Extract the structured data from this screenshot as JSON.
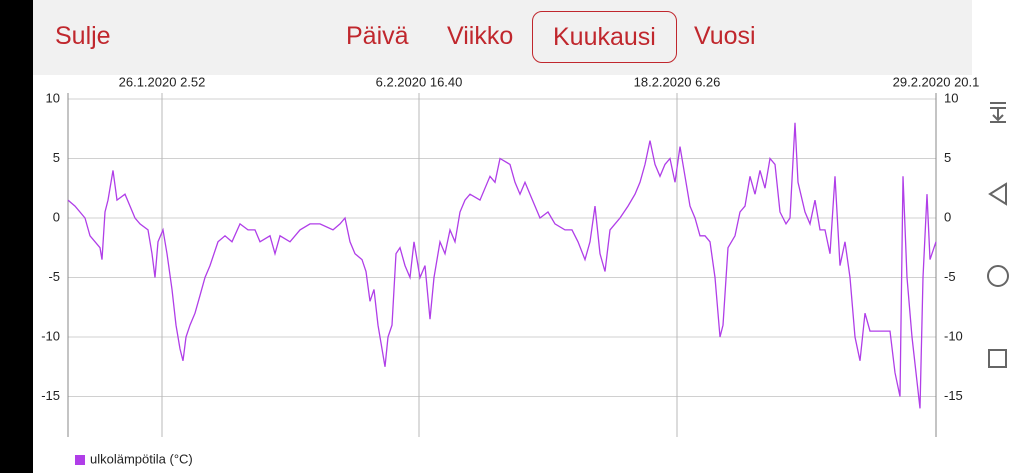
{
  "header": {
    "close": "Sulje",
    "tabs": [
      "Päivä",
      "Viikko",
      "Kuukausi",
      "Vuosi"
    ],
    "selected_tab": 2
  },
  "chart_data": {
    "type": "line",
    "x": [
      0,
      7,
      17,
      22,
      32,
      34,
      37,
      40,
      45,
      49,
      57,
      67,
      72,
      80,
      84,
      87,
      90,
      95,
      99,
      104,
      108,
      112,
      115,
      118,
      122,
      127,
      132,
      137,
      142,
      150,
      157,
      164,
      172,
      180,
      187,
      192,
      202,
      207,
      212,
      222,
      232,
      242,
      252,
      265,
      272,
      277,
      282,
      287,
      294,
      298,
      302,
      306,
      310,
      314,
      317,
      320,
      324,
      328,
      332,
      337,
      342,
      346,
      352,
      357,
      362,
      366,
      372,
      377,
      382,
      387,
      392,
      397,
      402,
      412,
      422,
      427,
      432,
      442,
      447,
      452,
      457,
      462,
      467,
      472,
      480,
      487,
      497,
      504,
      510,
      517,
      522,
      527,
      532,
      537,
      542,
      547,
      552,
      560,
      567,
      572,
      577,
      582,
      587,
      592,
      597,
      602,
      607,
      612,
      617,
      622,
      627,
      632,
      637,
      642,
      647,
      652,
      655,
      660,
      667,
      672,
      677,
      682,
      687,
      692,
      697,
      702,
      707,
      712,
      718,
      722,
      727,
      730,
      737,
      742,
      747,
      752,
      757,
      762,
      767,
      772,
      777,
      782,
      787,
      792,
      797,
      802,
      812,
      822,
      827,
      832,
      835,
      839,
      844,
      848,
      852,
      855,
      859,
      862,
      868
    ],
    "series": [
      {
        "name": "ulkolämpötila (°C)",
        "color": "#b03ee8",
        "values": [
          1.5,
          1,
          0,
          -1.5,
          -2.5,
          -3.5,
          0.5,
          1.5,
          4,
          1.5,
          2,
          0,
          -0.5,
          -1,
          -3,
          -5,
          -2,
          -1,
          -3,
          -6,
          -9,
          -11,
          -12,
          -10,
          -9,
          -8,
          -6.5,
          -5,
          -4,
          -2,
          -1.5,
          -2,
          -0.5,
          -1,
          -1,
          -2,
          -1.5,
          -3,
          -1.5,
          -2,
          -1,
          -0.5,
          -0.5,
          -1,
          -0.5,
          0,
          -2,
          -3,
          -3.5,
          -4.5,
          -7,
          -6,
          -9,
          -11,
          -12.5,
          -10,
          -9,
          -3,
          -2.5,
          -4,
          -5,
          -2,
          -5,
          -4,
          -8.5,
          -5,
          -2,
          -3,
          -1,
          -2,
          0.5,
          1.5,
          2,
          1.5,
          3.5,
          3,
          5,
          4.5,
          3,
          2,
          3,
          2,
          1,
          0,
          0.5,
          -0.5,
          -1,
          -1,
          -2,
          -3.5,
          -2,
          1,
          -3,
          -4.5,
          -1,
          -0.5,
          0,
          1,
          2,
          3,
          4.5,
          6.5,
          4.5,
          3.5,
          4.5,
          5,
          3,
          6,
          3.5,
          1,
          0,
          -1.5,
          -1.5,
          -2,
          -5,
          -10,
          -9,
          -2.5,
          -1.5,
          0.5,
          1,
          3.5,
          2,
          4,
          2.5,
          5,
          4.5,
          0.5,
          -0.5,
          0,
          8,
          3,
          0.5,
          -0.5,
          1.5,
          -1,
          -1,
          -3,
          3.5,
          -4,
          -2,
          -5,
          -10,
          -12,
          -8,
          -9.5,
          -9.5,
          -9.5,
          -13,
          -15,
          3.5,
          -5,
          -10,
          -13,
          -16,
          -5,
          2,
          -3.5,
          -2
        ]
      }
    ],
    "xlim": [
      0,
      868
    ],
    "xticks": [
      {
        "value": 94,
        "label": "26.1.2020 2.52"
      },
      {
        "value": 351,
        "label": "6.2.2020 16.40"
      },
      {
        "value": 609,
        "label": "18.2.2020 6.26"
      },
      {
        "value": 868,
        "label": "29.2.2020 20.1"
      }
    ],
    "ylim": [
      -18.4,
      10.5
    ],
    "yticks": [
      10,
      5,
      0,
      -5,
      -10,
      -15
    ],
    "grid": true,
    "legend": "bottom-left"
  }
}
